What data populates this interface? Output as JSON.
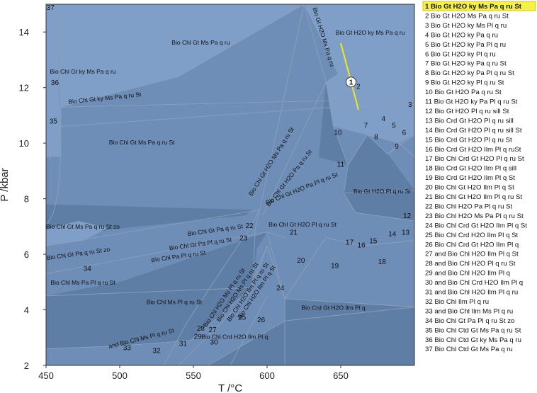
{
  "chart_data": {
    "type": "pseudosection",
    "xlabel": "T /°C",
    "ylabel": "P /kbar",
    "xlim": [
      450,
      700
    ],
    "ylim": [
      2,
      15
    ],
    "xticks": [
      450,
      500,
      550,
      600,
      650
    ],
    "yticks": [
      2,
      4,
      6,
      8,
      10,
      12,
      14
    ],
    "marker": {
      "label": "1",
      "x": 657,
      "y": 12.2
    },
    "legend": [
      "1 Bio Gt H2O ky Ms Pa q ru St",
      "2 Bio Gt H2O Ms Pa q ru St",
      "3 Bio Gt H2O ky Ms Pl q ru",
      "4 Bio Gt H2O ky Pa q ru",
      "5 Bio Gt H2O ky Pa Pl q ru",
      "6 Bio Gt H2O ky Pl q ru",
      "7 Bio Gt H2O ky Pa q ru St",
      "8 Bio Gt H2O ky Pa Pl q ru St",
      "9 Bio Gt H2O ky Pl q ru St",
      "10 Bio Gt H2O Pa q ru St",
      "11 Bio Gt H2O ky Pa Pl q ru St",
      "12 Bio Gt H2O Pl q ru sill St",
      "13 Bio Crd Gt H2O Pl q ru sill",
      "14 Bio Crd Gt H2O Pl q ru sill St",
      "15 Bio Crd Gt H2O Pl q ru St",
      "16 Bio Crd Gt H2O Ilm Pl q ruSt",
      "17 Bio Chl Crd Gt H2O Pl q ru St",
      "18 Bio Crd Gt H2O Ilm Pl q sill",
      "19 Bio Crd Gt H2O Ilm Pl q St",
      "20 Bio Chl Gt H2O Ilm Pl q St",
      "21 Bio Chl Gt H2O Ilm Pl q ru St",
      "22 Bio Chl H2O Pa Pl q ru St",
      "23 Bio Chl H2O Ms Pa Pl q ru St",
      "24 Bio Chl Crd Gt H2O Ilm Pl q St",
      "25 Bio Chl Crd H2O Ilm Pl q St",
      "26 Bio Chl Crd Gt H2O Ilm Pl q",
      "27 and Bio Chl H2O Ilm Pl q St",
      "28 and Bio Chl H2O Pl q ru St",
      "29 and Bio Chl H2O Ilm Pl q",
      "30 and Bio Chl Crd H2O Ilm Pl q",
      "31 and Bio Chl H2O Ilm Pl q ru",
      "32 Bio Chl Ilm Pl q ru",
      "33 and Bio Chl Ilm Ms Pl q ru",
      "34 Bio Chl Gt Pa Pl q ru St zo",
      "35 Bio Chl Ctd Gt Ms Pa q ru St",
      "36 Bio Chl Ctd Gt ky Ms Pa q ru",
      "37 Bio Chl Ctd Gt Ms Pa q ru"
    ],
    "field_labels": [
      {
        "text": "Bio Chl Gt Ms Pa q ru",
        "x": 555,
        "y": 13.55,
        "rot": 0
      },
      {
        "text": "Bio Chl Gt ky Ms Pa q ru",
        "x": 475,
        "y": 12.5,
        "rot": 0
      },
      {
        "text": "Bio Chl Gt ky Ms Pa q ru St",
        "x": 490,
        "y": 11.55,
        "rot": -6
      },
      {
        "text": "Bio Chl Gt Ms Pa q ru St",
        "x": 515,
        "y": 9.95,
        "rot": 0
      },
      {
        "text": "Bio Gt H2O ky Ms Pa q ru",
        "x": 670,
        "y": 13.9,
        "rot": 0
      },
      {
        "text": "Bio Gt H2O Ms Pa q ru",
        "x": 637,
        "y": 13.8,
        "rot": 73
      },
      {
        "text": "Bio Chl Gt H2O Ms Pa q ru St",
        "x": 604,
        "y": 9.3,
        "rot": -58
      },
      {
        "text": "Bio Chl Gt H2O Pa q ru St",
        "x": 616,
        "y": 8.7,
        "rot": -52
      },
      {
        "text": "Bio Chl Gt H2O Pa Pl q ru St",
        "x": 624,
        "y": 8.3,
        "rot": -22
      },
      {
        "text": "Bio Gt H2O Pl q ru St",
        "x": 678,
        "y": 8.2,
        "rot": 0
      },
      {
        "text": "Bio Chl Gt H2O Pl q ru St",
        "x": 624,
        "y": 7.0,
        "rot": 0,
        "size": 11
      },
      {
        "text": "Bio Chl Gt Ms Pa q ru St zo",
        "x": 475,
        "y": 6.92,
        "rot": 0
      },
      {
        "text": "Bio Chl Gt Pa q ru St",
        "x": 565,
        "y": 6.8,
        "rot": -8
      },
      {
        "text": "Bio Chl Gt Pa Pl q ru St",
        "x": 555,
        "y": 6.3,
        "rot": -8
      },
      {
        "text": "Bio Chl Pa Pl q ru St",
        "x": 540,
        "y": 5.85,
        "rot": -8
      },
      {
        "text": "Bio Chl Gt Pa q ru St zo",
        "x": 472,
        "y": 5.95,
        "rot": -8
      },
      {
        "text": "Bio Chl Ms Pa Pl q ru St",
        "x": 475,
        "y": 4.9,
        "rot": 0
      },
      {
        "text": "Bio Chl Ms Pl q ru St",
        "x": 537,
        "y": 4.2,
        "rot": 0
      },
      {
        "text": "Bio Chl H2O Ms Pl q ru St",
        "x": 572,
        "y": 4.4,
        "rot": -56
      },
      {
        "text": "Bio Chl H2O Ms Pl q ru St",
        "x": 581,
        "y": 4.6,
        "rot": -56
      },
      {
        "text": "Bio Chl H2O Ilm Pl q ru St",
        "x": 588,
        "y": 4.6,
        "rot": -56
      },
      {
        "text": "Bio Chl H2O Ilm Pl q St",
        "x": 594,
        "y": 4.6,
        "rot": -56
      },
      {
        "text": "Bio Crd Gt H2O Ilm Pl q",
        "x": 645,
        "y": 4.0,
        "rot": 0,
        "size": 10
      },
      {
        "text": "Bio Chl Crd H2O Ilm Pl q",
        "x": 578,
        "y": 2.95,
        "rot": 0
      },
      {
        "text": "and Bio Chl Ms Pl q ru St",
        "x": 515,
        "y": 2.9,
        "rot": -14
      }
    ],
    "field_numbers": [
      {
        "n": "2",
        "x": 662,
        "y": 11.95
      },
      {
        "n": "3",
        "x": 697,
        "y": 11.3
      },
      {
        "n": "4",
        "x": 679,
        "y": 10.8
      },
      {
        "n": "5",
        "x": 686,
        "y": 10.55
      },
      {
        "n": "6",
        "x": 693,
        "y": 10.3
      },
      {
        "n": "7",
        "x": 667,
        "y": 10.55
      },
      {
        "n": "8",
        "x": 674,
        "y": 10.15
      },
      {
        "n": "9",
        "x": 688,
        "y": 9.8
      },
      {
        "n": "10",
        "x": 648,
        "y": 10.3
      },
      {
        "n": "11",
        "x": 650,
        "y": 9.15
      },
      {
        "n": "12",
        "x": 695,
        "y": 7.3
      },
      {
        "n": "13",
        "x": 694,
        "y": 6.7
      },
      {
        "n": "14",
        "x": 685,
        "y": 6.65
      },
      {
        "n": "15",
        "x": 672,
        "y": 6.4
      },
      {
        "n": "16",
        "x": 664,
        "y": 6.25
      },
      {
        "n": "17",
        "x": 656,
        "y": 6.35
      },
      {
        "n": "18",
        "x": 678,
        "y": 5.65
      },
      {
        "n": "19",
        "x": 646,
        "y": 5.5
      },
      {
        "n": "20",
        "x": 623,
        "y": 5.7
      },
      {
        "n": "21",
        "x": 618,
        "y": 6.7
      },
      {
        "n": "22",
        "x": 588,
        "y": 6.95
      },
      {
        "n": "23",
        "x": 584,
        "y": 6.5
      },
      {
        "n": "24",
        "x": 609,
        "y": 4.7
      },
      {
        "n": "25",
        "x": 583,
        "y": 3.65
      },
      {
        "n": "26",
        "x": 596,
        "y": 3.55
      },
      {
        "n": "27",
        "x": 563,
        "y": 3.2
      },
      {
        "n": "28",
        "x": 555,
        "y": 3.25
      },
      {
        "n": "29",
        "x": 553,
        "y": 2.95
      },
      {
        "n": "30",
        "x": 564,
        "y": 2.75
      },
      {
        "n": "31",
        "x": 543,
        "y": 2.7
      },
      {
        "n": "32",
        "x": 525,
        "y": 2.45
      },
      {
        "n": "33",
        "x": 505,
        "y": 2.55
      },
      {
        "n": "34",
        "x": 478,
        "y": 5.4
      },
      {
        "n": "35",
        "x": 455,
        "y": 10.7
      },
      {
        "n": "36",
        "x": 456,
        "y": 12.1
      },
      {
        "n": "37",
        "x": 453,
        "y": 14.8
      }
    ],
    "colors": {
      "field_light": "#7f9fc8",
      "field_mid": "#6e8db7",
      "field_dark": "#5f7ea6",
      "boundary": "#8d9fb8",
      "highlight_line": "#f0e81e"
    }
  }
}
